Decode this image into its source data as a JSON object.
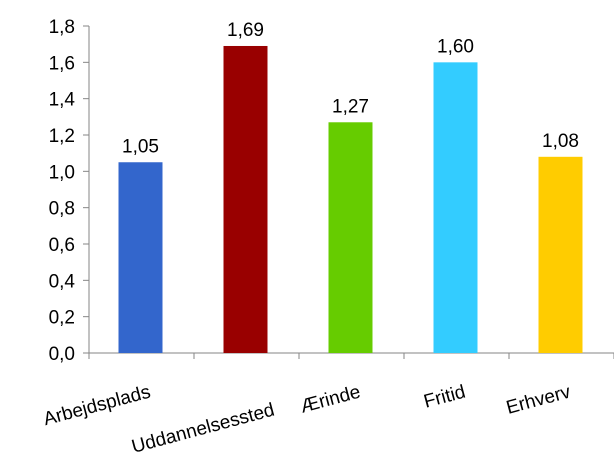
{
  "chart_data": {
    "type": "bar",
    "categories": [
      "Arbejdsplads",
      "Uddannelsessted",
      "Ærinde",
      "Fritid",
      "Erhverv"
    ],
    "values": [
      1.05,
      1.69,
      1.27,
      1.6,
      1.08
    ],
    "data_labels": [
      "1,05",
      "1,69",
      "1,27",
      "1,60",
      "1,08"
    ],
    "colors": [
      "#3366cc",
      "#990000",
      "#66cc00",
      "#33ccff",
      "#ffcc00"
    ],
    "ylim": [
      0,
      1.8
    ],
    "yticks": [
      0,
      0.2,
      0.4,
      0.6,
      0.8,
      1.0,
      1.2,
      1.4,
      1.6,
      1.8
    ],
    "ytick_labels": [
      "0,0",
      "0,2",
      "0,4",
      "0,6",
      "0,8",
      "1,0",
      "1,2",
      "1,4",
      "1,6",
      "1,8"
    ],
    "title": "",
    "xlabel": "",
    "ylabel": "",
    "grid": false,
    "legend": "none"
  }
}
